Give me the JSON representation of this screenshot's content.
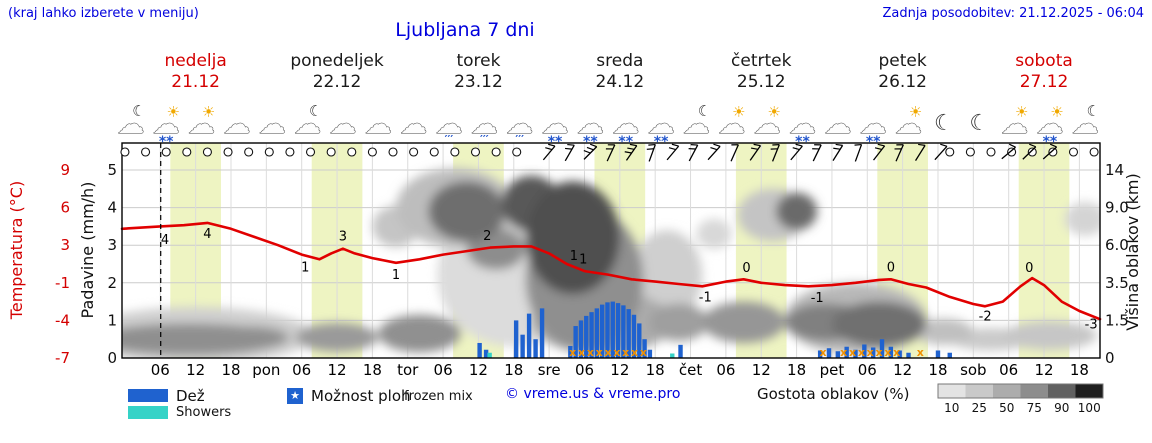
{
  "header": {
    "note_left": "(kraj lahko izberete v meniju)",
    "note_right": "Zadnja posodobitev: 21.12.2025 - 06:04",
    "title": "Ljubljana 7 dni"
  },
  "axes": {
    "temp_title": "Temperatura (°C)",
    "precip_title": "Padavine (mm/h)",
    "cloud_title": "Višina oblakov (km)",
    "temp_ticks": [
      "9",
      "6",
      "3",
      "-1",
      "-4",
      "-7"
    ],
    "precip_ticks": [
      "5",
      "4",
      "3",
      "2",
      "1",
      "0"
    ],
    "cloud_ticks": [
      "14",
      "9.0",
      "6.0",
      "3.5",
      "1.5",
      "0"
    ]
  },
  "days": [
    {
      "name": "nedelja",
      "date": "21.12",
      "color": "#d40000",
      "center_t": 6
    },
    {
      "name": "ponedeljek",
      "date": "22.12",
      "color": "#1a1a1a",
      "center_t": 30
    },
    {
      "name": "torek",
      "date": "23.12",
      "color": "#1a1a1a",
      "center_t": 54
    },
    {
      "name": "sreda",
      "date": "24.12",
      "color": "#1a1a1a",
      "center_t": 78
    },
    {
      "name": "četrtek",
      "date": "25.12",
      "color": "#1a1a1a",
      "center_t": 102
    },
    {
      "name": "petek",
      "date": "26.12",
      "color": "#1a1a1a",
      "center_t": 126
    },
    {
      "name": "sobota",
      "date": "27.12",
      "color": "#d40000",
      "center_t": 150
    }
  ],
  "legend": {
    "rain_label": "Dež",
    "showers_label": "Showers",
    "mix_label": "Možnost ploh",
    "frozen_label": "frozen mix",
    "star_glyph": "★",
    "copyright": "© vreme.us & vreme.pro",
    "density_label": "Gostota oblakov (%)",
    "density_scale": {
      "values": [
        "10",
        "25",
        "50",
        "75",
        "90",
        "100"
      ],
      "colors": [
        "#e3e3e3",
        "#c9c9c9",
        "#acacac",
        "#8d8d8d",
        "#616161",
        "#1f1f1f"
      ]
    }
  },
  "chart_data": {
    "type": "meteogram",
    "title": "Ljubljana 7 dni",
    "time_start": -6.5,
    "time_end": 159.5,
    "now_t": 0.07,
    "temp_axis": {
      "max": 9,
      "min": -7
    },
    "precip_axis": {
      "max": 5,
      "min": 0
    },
    "colors": {
      "temp": "#e10000",
      "rain": "#1f62cf",
      "showers": "#35d3c7",
      "frozen": "#f09000",
      "daylight": "#eef4c2",
      "grid": "#cccccc",
      "frame": "#000000",
      "icon_accent_sun": "#f0a800",
      "icon_precip": "#2255cc"
    },
    "x_ticks": [
      [
        0,
        "06"
      ],
      [
        6,
        "12"
      ],
      [
        12,
        "18"
      ],
      [
        18,
        "pon"
      ],
      [
        24,
        "06"
      ],
      [
        30,
        "12"
      ],
      [
        36,
        "18"
      ],
      [
        42,
        "tor"
      ],
      [
        48,
        "06"
      ],
      [
        54,
        "12"
      ],
      [
        60,
        "18"
      ],
      [
        66,
        "sre"
      ],
      [
        72,
        "06"
      ],
      [
        78,
        "12"
      ],
      [
        84,
        "18"
      ],
      [
        90,
        "čet"
      ],
      [
        96,
        "06"
      ],
      [
        102,
        "12"
      ],
      [
        108,
        "18"
      ],
      [
        114,
        "pet"
      ],
      [
        120,
        "06"
      ],
      [
        126,
        "12"
      ],
      [
        132,
        "18"
      ],
      [
        138,
        "sob"
      ],
      [
        144,
        "06"
      ],
      [
        150,
        "12"
      ],
      [
        156,
        "18"
      ]
    ],
    "daylight_bands": [
      [
        1.7,
        10.3
      ],
      [
        25.7,
        34.3
      ],
      [
        49.7,
        58.3
      ],
      [
        73.7,
        82.3
      ],
      [
        97.7,
        106.3
      ],
      [
        121.7,
        130.3
      ],
      [
        145.7,
        154.3
      ]
    ],
    "temperature_c": [
      [
        -6.5,
        4.0
      ],
      [
        0,
        4.2
      ],
      [
        4,
        4.3
      ],
      [
        8,
        4.5
      ],
      [
        12,
        4.0
      ],
      [
        16,
        3.3
      ],
      [
        20,
        2.6
      ],
      [
        24,
        1.8
      ],
      [
        27,
        1.4
      ],
      [
        29,
        1.9
      ],
      [
        31,
        2.3
      ],
      [
        33,
        1.9
      ],
      [
        36,
        1.5
      ],
      [
        40,
        1.1
      ],
      [
        44,
        1.4
      ],
      [
        48,
        1.8
      ],
      [
        52,
        2.1
      ],
      [
        56,
        2.4
      ],
      [
        60,
        2.5
      ],
      [
        63,
        2.5
      ],
      [
        66,
        1.9
      ],
      [
        69,
        1.0
      ],
      [
        72,
        0.4
      ],
      [
        76,
        0.1
      ],
      [
        80,
        -0.3
      ],
      [
        84,
        -0.5
      ],
      [
        88,
        -0.7
      ],
      [
        92,
        -0.9
      ],
      [
        96,
        -0.5
      ],
      [
        99,
        -0.3
      ],
      [
        102,
        -0.6
      ],
      [
        106,
        -0.8
      ],
      [
        110,
        -0.9
      ],
      [
        114,
        -0.8
      ],
      [
        118,
        -0.6
      ],
      [
        122,
        -0.35
      ],
      [
        124,
        -0.3
      ],
      [
        127,
        -0.7
      ],
      [
        130,
        -1.0
      ],
      [
        134,
        -1.8
      ],
      [
        138,
        -2.4
      ],
      [
        140,
        -2.6
      ],
      [
        143,
        -2.2
      ],
      [
        146,
        -0.9
      ],
      [
        148,
        -0.2
      ],
      [
        150,
        -0.8
      ],
      [
        153,
        -2.2
      ],
      [
        156,
        -3.0
      ],
      [
        159.5,
        -3.7
      ]
    ],
    "temp_labels": [
      [
        0.8,
        "4",
        18
      ],
      [
        8,
        "4",
        15
      ],
      [
        24.6,
        "1",
        16
      ],
      [
        31,
        "3",
        -8
      ],
      [
        40,
        "1",
        16
      ],
      [
        55.5,
        "2",
        -8
      ],
      [
        70.2,
        "1",
        -7
      ],
      [
        71.8,
        "1",
        -7
      ],
      [
        92.5,
        "-1",
        16
      ],
      [
        99.5,
        "0",
        -8
      ],
      [
        111.5,
        "-1",
        16
      ],
      [
        124,
        "0",
        -8
      ],
      [
        140,
        "-2",
        14
      ],
      [
        147.5,
        "0",
        -8
      ],
      [
        158,
        "-3",
        13
      ]
    ],
    "precip_rain_mmh": [
      [
        54.2,
        0.4
      ],
      [
        55.3,
        0.22
      ],
      [
        60.4,
        1.0
      ],
      [
        61.5,
        0.62
      ],
      [
        62.6,
        1.18
      ],
      [
        63.7,
        0.5
      ],
      [
        64.8,
        1.32
      ],
      [
        69.6,
        0.32
      ],
      [
        70.5,
        0.85
      ],
      [
        71.4,
        1.0
      ],
      [
        72.3,
        1.12
      ],
      [
        73.2,
        1.22
      ],
      [
        74.1,
        1.32
      ],
      [
        75,
        1.42
      ],
      [
        75.9,
        1.48
      ],
      [
        76.8,
        1.5
      ],
      [
        77.7,
        1.46
      ],
      [
        78.6,
        1.4
      ],
      [
        79.5,
        1.3
      ],
      [
        80.4,
        1.15
      ],
      [
        81.3,
        0.92
      ],
      [
        82.2,
        0.5
      ],
      [
        83.1,
        0.22
      ],
      [
        88.3,
        0.35
      ],
      [
        112,
        0.2
      ],
      [
        113.5,
        0.26
      ],
      [
        115,
        0.18
      ],
      [
        116.5,
        0.3
      ],
      [
        118,
        0.22
      ],
      [
        119.5,
        0.36
      ],
      [
        121,
        0.28
      ],
      [
        122.5,
        0.5
      ],
      [
        124,
        0.3
      ],
      [
        125.5,
        0.2
      ],
      [
        127,
        0.14
      ],
      [
        132,
        0.2
      ],
      [
        134,
        0.14
      ]
    ],
    "precip_showers_mmh": [
      [
        55.9,
        0.14
      ],
      [
        86.9,
        0.12
      ]
    ],
    "frozen_mix_t": [
      70,
      71.5,
      73,
      74.5,
      76,
      77.5,
      79,
      80.5,
      82,
      112.5,
      116,
      117.5,
      119,
      120.5,
      122,
      123.5,
      125,
      129
    ],
    "cloud_blobs": [
      [
        6,
        0.6,
        20,
        0.75,
        "#cfcfcf"
      ],
      [
        5,
        0.5,
        16,
        0.42,
        "#8f8f8f"
      ],
      [
        16,
        0.55,
        6,
        0.3,
        "#a0a0a0"
      ],
      [
        30,
        0.55,
        7,
        0.38,
        "#9a9a9a"
      ],
      [
        44,
        0.65,
        7,
        0.5,
        "#909090"
      ],
      [
        40,
        3.5,
        4,
        0.55,
        "#c5c5c5"
      ],
      [
        50,
        4.0,
        10,
        1.05,
        "#bdbdbd"
      ],
      [
        52,
        3.9,
        6.5,
        0.8,
        "#6e6e6e"
      ],
      [
        57,
        2.9,
        5,
        0.55,
        "#8d8d8d"
      ],
      [
        63,
        4.1,
        5,
        0.75,
        "#595959"
      ],
      [
        60,
        2.2,
        13,
        1.9,
        "#dcdcdc"
      ],
      [
        70,
        3.2,
        8,
        1.5,
        "#4f4f4f"
      ],
      [
        72,
        2.1,
        10,
        1.9,
        "#8f8f8f"
      ],
      [
        75,
        0.95,
        12,
        0.85,
        "#ababab"
      ],
      [
        86,
        2.2,
        6,
        1.2,
        "#cfcfcf"
      ],
      [
        88,
        0.95,
        5,
        0.5,
        "#9f9f9f"
      ],
      [
        94,
        3.3,
        3,
        0.4,
        "#d8d8d8"
      ],
      [
        99,
        0.95,
        7,
        0.55,
        "#969696"
      ],
      [
        104,
        3.8,
        6,
        0.7,
        "#c4c4c4"
      ],
      [
        108,
        3.9,
        3.5,
        0.5,
        "#6a6a6a"
      ],
      [
        113,
        0.95,
        7,
        0.5,
        "#808080"
      ],
      [
        118,
        1.05,
        12,
        0.95,
        "#b8b8b8"
      ],
      [
        122,
        0.9,
        8,
        0.6,
        "#707070"
      ],
      [
        133,
        0.7,
        5,
        0.35,
        "#c0c0c0"
      ],
      [
        141,
        0.5,
        7,
        0.3,
        "#cacaca"
      ],
      [
        151,
        0.6,
        8,
        0.38,
        "#c6c6c6"
      ],
      [
        157,
        3.7,
        3.5,
        0.45,
        "#d4d4d4"
      ]
    ],
    "weather_icons": [
      {
        "t": -5,
        "base": "cloud",
        "accent": "moon"
      },
      {
        "t": 1,
        "base": "cloud",
        "accent": "sun",
        "precip": "snow"
      },
      {
        "t": 7,
        "base": "cloud",
        "accent": "sun"
      },
      {
        "t": 13,
        "base": "cloud"
      },
      {
        "t": 19,
        "base": "cloud"
      },
      {
        "t": 25,
        "base": "cloud",
        "accent": "moon"
      },
      {
        "t": 31,
        "base": "cloud"
      },
      {
        "t": 37,
        "base": "cloud"
      },
      {
        "t": 43,
        "base": "cloud"
      },
      {
        "t": 49,
        "base": "cloud",
        "precip": "rain"
      },
      {
        "t": 55,
        "base": "cloud",
        "precip": "rain"
      },
      {
        "t": 61,
        "base": "cloud",
        "precip": "rain"
      },
      {
        "t": 67,
        "base": "cloud",
        "precip": "snow"
      },
      {
        "t": 73,
        "base": "cloud",
        "precip": "snow"
      },
      {
        "t": 79,
        "base": "cloud",
        "precip": "snow"
      },
      {
        "t": 85,
        "base": "cloud",
        "precip": "snow"
      },
      {
        "t": 91,
        "base": "cloud",
        "accent": "moon"
      },
      {
        "t": 97,
        "base": "cloud",
        "accent": "sun"
      },
      {
        "t": 103,
        "base": "cloud",
        "accent": "sun"
      },
      {
        "t": 109,
        "base": "cloud",
        "precip": "snow"
      },
      {
        "t": 115,
        "base": "cloud"
      },
      {
        "t": 121,
        "base": "cloud",
        "precip": "snow"
      },
      {
        "t": 127,
        "base": "cloud",
        "accent": "sun"
      },
      {
        "t": 133,
        "base": "moon"
      },
      {
        "t": 139,
        "base": "moon"
      },
      {
        "t": 145,
        "base": "cloud",
        "accent": "sun"
      },
      {
        "t": 151,
        "base": "cloud",
        "accent": "sun",
        "precip": "snow"
      },
      {
        "t": 157,
        "base": "cloud",
        "accent": "moon"
      }
    ],
    "cloud_cover_rows": [
      [
        -6,
        63,
        3.5
      ],
      [
        134,
        159,
        3.5
      ]
    ],
    "wind_barbs": [
      [
        66,
        50,
        2
      ],
      [
        69.5,
        60,
        2
      ],
      [
        73,
        45,
        3
      ],
      [
        76.5,
        65,
        2
      ],
      [
        80,
        55,
        3
      ],
      [
        83.5,
        70,
        2
      ],
      [
        87,
        50,
        2
      ],
      [
        90.5,
        62,
        2
      ],
      [
        94,
        48,
        2
      ],
      [
        97.5,
        66,
        1
      ],
      [
        101,
        55,
        2
      ],
      [
        104.5,
        68,
        2
      ],
      [
        108,
        50,
        2
      ],
      [
        111.5,
        64,
        2
      ],
      [
        115,
        58,
        2
      ],
      [
        118.5,
        70,
        1
      ],
      [
        122,
        52,
        2
      ],
      [
        125.5,
        66,
        2
      ],
      [
        129,
        58,
        1
      ],
      [
        132.5,
        48,
        1
      ],
      [
        144,
        40,
        1
      ],
      [
        147.5,
        44,
        1
      ],
      [
        151,
        42,
        1
      ]
    ]
  }
}
